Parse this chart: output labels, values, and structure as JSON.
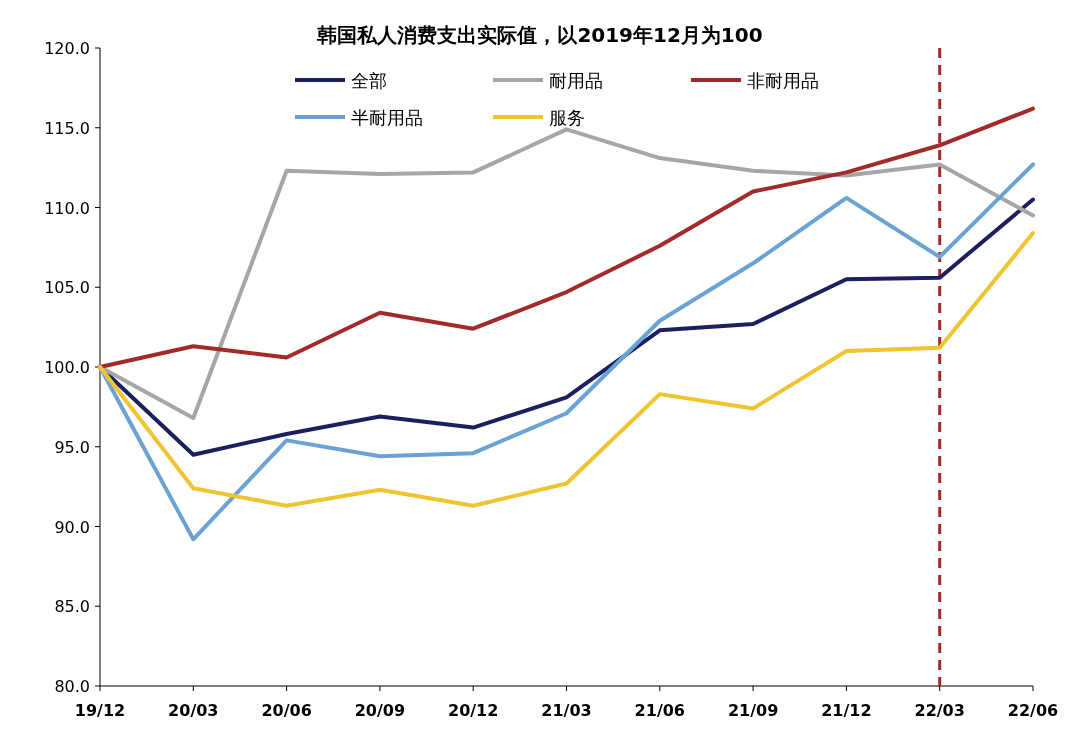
{
  "chart_data": {
    "type": "line",
    "title": "韩国私人消费支出实际值，以2019年12月为100",
    "categories": [
      "19/12",
      "20/03",
      "20/06",
      "20/09",
      "20/12",
      "21/03",
      "21/06",
      "21/09",
      "21/12",
      "22/03",
      "22/06"
    ],
    "series": [
      {
        "name": "全部",
        "color": "#1b1f5e",
        "values": [
          100,
          94.5,
          95.8,
          96.9,
          96.2,
          98.1,
          102.3,
          102.7,
          105.5,
          105.6,
          110.5
        ]
      },
      {
        "name": "耐用品",
        "color": "#a6a6a6",
        "values": [
          100,
          96.8,
          112.3,
          112.1,
          112.2,
          114.9,
          113.1,
          112.3,
          112.0,
          112.7,
          109.5
        ]
      },
      {
        "name": "非耐用品",
        "color": "#a32a2a",
        "values": [
          100,
          101.3,
          100.6,
          103.4,
          102.4,
          104.7,
          107.6,
          111.0,
          112.2,
          113.9,
          116.2
        ]
      },
      {
        "name": "半耐用品",
        "color": "#6aa2d4",
        "values": [
          100,
          89.2,
          95.4,
          94.4,
          94.6,
          97.1,
          102.9,
          106.5,
          110.6,
          106.9,
          112.7
        ]
      },
      {
        "name": "服务",
        "color": "#f0c431",
        "values": [
          100,
          92.4,
          91.3,
          92.3,
          91.3,
          92.7,
          98.3,
          97.4,
          101.0,
          101.2,
          108.4
        ]
      }
    ],
    "ylim": [
      80,
      120
    ],
    "yticks": [
      {
        "value": 80,
        "label": "80.0"
      },
      {
        "value": 85,
        "label": "85.0"
      },
      {
        "value": 90,
        "label": "90.0"
      },
      {
        "value": 95,
        "label": "95.0"
      },
      {
        "value": 100,
        "label": "100.0"
      },
      {
        "value": 105,
        "label": "105.0"
      },
      {
        "value": 110,
        "label": "110.0"
      },
      {
        "value": 115,
        "label": "115.0"
      },
      {
        "value": 120,
        "label": "120.0"
      }
    ],
    "legend": "top",
    "line_style": "solid",
    "ref_lines": [
      {
        "axis": "x",
        "value": "22/03",
        "color": "#a32a2a",
        "line_style": "dashed"
      }
    ]
  }
}
